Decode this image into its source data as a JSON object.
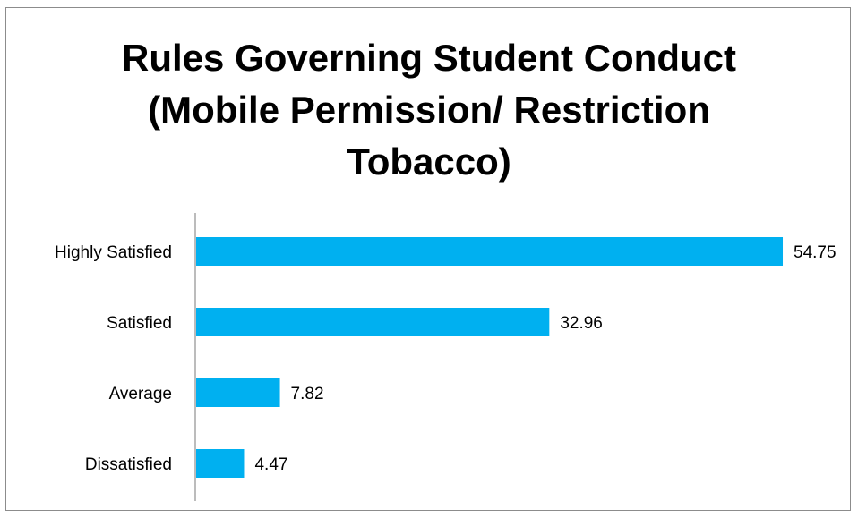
{
  "chart_data": {
    "type": "bar",
    "orientation": "horizontal",
    "title_lines": [
      "Rules Governing Student Conduct",
      "(Mobile Permission/ Restriction",
      "Tobacco)"
    ],
    "categories": [
      "Highly Satisfied",
      "Satisfied",
      "Average",
      "Dissatisfied"
    ],
    "values": [
      54.75,
      32.96,
      7.82,
      4.47
    ],
    "value_labels": [
      "54.75",
      "32.96",
      "7.82",
      "4.47"
    ],
    "xlim": [
      0,
      55
    ],
    "grid": false,
    "legend": "none",
    "bar_color": "#00b0f0"
  }
}
